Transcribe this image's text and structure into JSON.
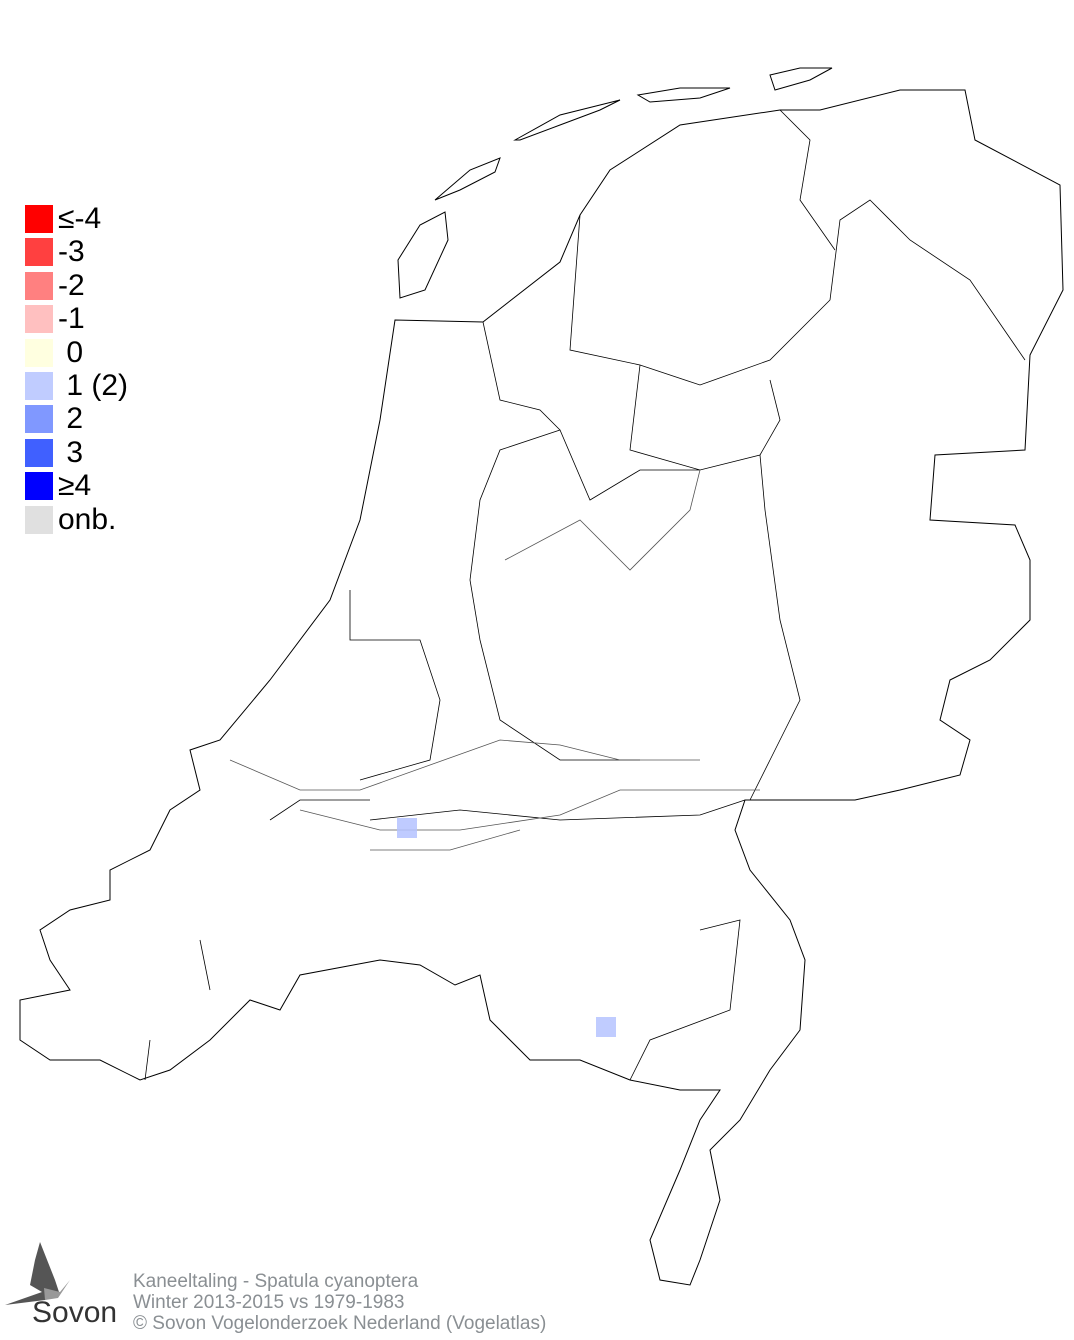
{
  "legend": [
    {
      "label": "≤-4",
      "color": "#ff0000"
    },
    {
      "label": "-3",
      "color": "#ff4040"
    },
    {
      "label": "-2",
      "color": "#ff8080"
    },
    {
      "label": "-1",
      "color": "#ffc0c0"
    },
    {
      "label": " 0",
      "color": "#ffffe0"
    },
    {
      "label": " 1 (2)",
      "color": "#c0ccff"
    },
    {
      "label": " 2",
      "color": "#8098ff"
    },
    {
      "label": " 3",
      "color": "#4060ff"
    },
    {
      "label": "≥4",
      "color": "#0000ff"
    },
    {
      "label": "onb.",
      "color": "#e0e0e0"
    }
  ],
  "map": {
    "region": "Netherlands",
    "cells": [
      {
        "category": "1 (2)",
        "color": "#b4c2ff"
      },
      {
        "category": "1 (2)",
        "color": "#c0ccff"
      }
    ]
  },
  "footer": {
    "species": "Kaneeltaling - Spatula cyanoptera",
    "period": "Winter 2013-2015 vs 1979-1983",
    "copyright": "© Sovon Vogelonderzoek Nederland (Vogelatlas)"
  },
  "logo": {
    "text": "Sovon"
  }
}
